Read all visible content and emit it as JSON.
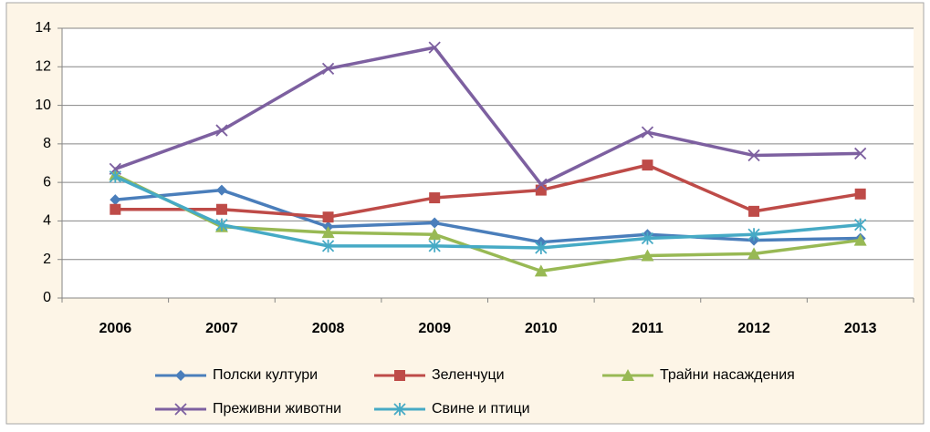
{
  "chart_data": {
    "type": "line",
    "categories": [
      "2006",
      "2007",
      "2008",
      "2009",
      "2010",
      "2011",
      "2012",
      "2013"
    ],
    "series": [
      {
        "name": "Полски култури",
        "color": "#4a7ebb",
        "marker": "diamond",
        "values": [
          5.1,
          5.6,
          3.7,
          3.9,
          2.9,
          3.3,
          3.0,
          3.1
        ]
      },
      {
        "name": "Зеленчуци",
        "color": "#be4b48",
        "marker": "square",
        "values": [
          4.6,
          4.6,
          4.2,
          5.2,
          5.6,
          6.9,
          4.5,
          5.4
        ]
      },
      {
        "name": "Трайни насаждения",
        "color": "#98b954",
        "marker": "triangle",
        "values": [
          6.4,
          3.7,
          3.4,
          3.3,
          1.4,
          2.2,
          2.3,
          3.0
        ]
      },
      {
        "name": "Преживни животни",
        "color": "#7d60a0",
        "marker": "x",
        "values": [
          6.7,
          8.7,
          11.9,
          13.0,
          5.9,
          8.6,
          7.4,
          7.5
        ]
      },
      {
        "name": "Свине и птици",
        "color": "#46aac5",
        "marker": "star",
        "values": [
          6.3,
          3.8,
          2.7,
          2.7,
          2.6,
          3.1,
          3.3,
          3.8
        ]
      }
    ],
    "ylim": [
      0,
      14
    ],
    "yticks": [
      0,
      2,
      4,
      6,
      8,
      10,
      12,
      14
    ],
    "grid": true,
    "legend": "bottom"
  }
}
